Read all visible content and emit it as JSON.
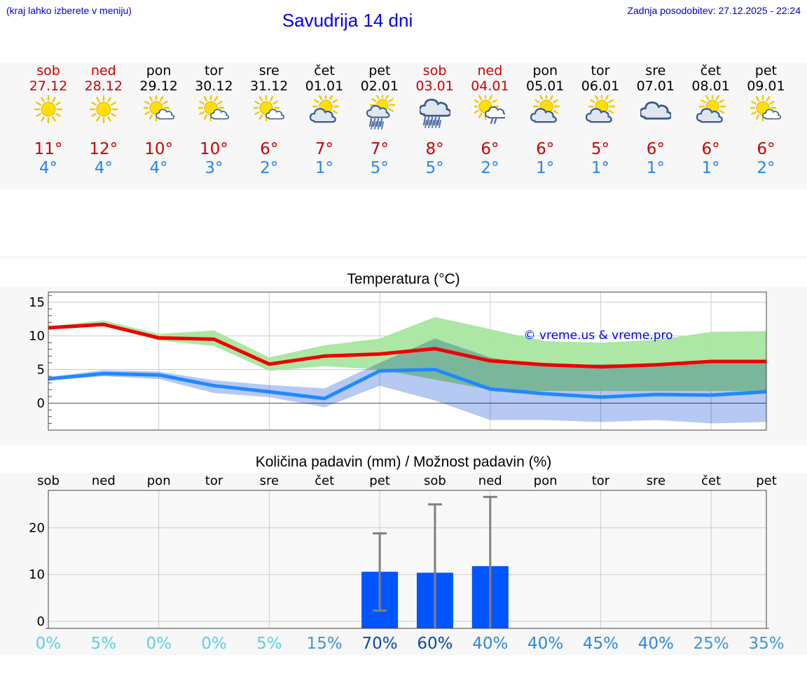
{
  "header": {
    "hint": "(kraj lahko izberete v meniju)",
    "title": "Savudrija 14 dni",
    "updated": "Zadnja posodobitev: 27.12.2025 - 22:24"
  },
  "days": [
    {
      "name": "sob",
      "date": "27.12",
      "weekend": true,
      "icon": "sun-icon",
      "tmax": "11°",
      "tmin": "4°"
    },
    {
      "name": "ned",
      "date": "28.12",
      "weekend": true,
      "icon": "sun-icon",
      "tmax": "12°",
      "tmin": "4°"
    },
    {
      "name": "pon",
      "date": "29.12",
      "weekend": false,
      "icon": "sun-small-cloud-icon",
      "tmax": "10°",
      "tmin": "4°"
    },
    {
      "name": "tor",
      "date": "30.12",
      "weekend": false,
      "icon": "sun-small-cloud-icon",
      "tmax": "10°",
      "tmin": "3°"
    },
    {
      "name": "sre",
      "date": "31.12",
      "weekend": false,
      "icon": "sun-small-cloud-icon",
      "tmax": "6°",
      "tmin": "2°"
    },
    {
      "name": "čet",
      "date": "01.01",
      "weekend": false,
      "icon": "sun-cloud-icon",
      "tmax": "7°",
      "tmin": "1°"
    },
    {
      "name": "pet",
      "date": "02.01",
      "weekend": false,
      "icon": "sun-cloud-rain-icon",
      "tmax": "7°",
      "tmin": "5°"
    },
    {
      "name": "sob",
      "date": "03.01",
      "weekend": true,
      "icon": "cloud-rain-icon",
      "tmax": "8°",
      "tmin": "5°"
    },
    {
      "name": "ned",
      "date": "04.01",
      "weekend": true,
      "icon": "sun-cloud-light-rain-icon",
      "tmax": "6°",
      "tmin": "2°"
    },
    {
      "name": "pon",
      "date": "05.01",
      "weekend": false,
      "icon": "sun-cloud-icon",
      "tmax": "6°",
      "tmin": "1°"
    },
    {
      "name": "tor",
      "date": "06.01",
      "weekend": false,
      "icon": "sun-cloud-icon",
      "tmax": "5°",
      "tmin": "1°"
    },
    {
      "name": "sre",
      "date": "07.01",
      "weekend": false,
      "icon": "cloud-icon",
      "tmax": "6°",
      "tmin": "1°"
    },
    {
      "name": "čet",
      "date": "08.01",
      "weekend": false,
      "icon": "sun-cloud-icon",
      "tmax": "6°",
      "tmin": "1°"
    },
    {
      "name": "pet",
      "date": "09.01",
      "weekend": false,
      "icon": "sun-small-cloud-icon",
      "tmax": "6°",
      "tmin": "2°"
    }
  ],
  "colors": {
    "max_line": "#ee0000",
    "min_line": "#2288ff",
    "max_band": "#a8e6a0",
    "min_band": "#a8c0f0",
    "overlap_band": "#7cc4a8",
    "bar": "#0055ff",
    "error_bar": "#808080",
    "watermark": "#0000ee"
  },
  "chart_data": [
    {
      "type": "line",
      "title": "Temperatura (°C)",
      "xlabel": "",
      "ylabel": "",
      "ylim": [
        -4,
        16.5
      ],
      "yticks": [
        0,
        5,
        10,
        15
      ],
      "watermark": "© vreme.us & vreme.pro",
      "x": [
        1,
        2,
        3,
        4,
        5,
        6,
        7,
        8,
        9,
        10,
        11,
        12,
        13,
        14
      ],
      "series": [
        {
          "name": "max",
          "values": [
            11.2,
            11.7,
            9.7,
            9.5,
            5.8,
            7.0,
            7.3,
            8.1,
            6.3,
            5.7,
            5.4,
            5.7,
            6.2,
            6.2
          ],
          "band_low": [
            11.0,
            11.5,
            9.3,
            8.5,
            4.8,
            5.5,
            5.0,
            3.5,
            2.0,
            1.8,
            1.8,
            1.8,
            1.8,
            1.8
          ],
          "band_high": [
            11.4,
            12.3,
            10.3,
            10.8,
            6.8,
            8.6,
            9.6,
            12.8,
            11.0,
            9.2,
            9.0,
            9.4,
            10.6,
            10.7
          ]
        },
        {
          "name": "min",
          "values": [
            3.6,
            4.4,
            4.2,
            2.6,
            1.7,
            0.7,
            4.8,
            5.0,
            2.1,
            1.4,
            0.9,
            1.3,
            1.2,
            1.7
          ],
          "band_low": [
            3.4,
            4.0,
            3.6,
            1.5,
            0.9,
            -0.6,
            2.6,
            0.4,
            -2.5,
            -2.5,
            -2.8,
            -2.5,
            -3.0,
            -2.8
          ],
          "band_high": [
            3.9,
            4.9,
            4.7,
            3.4,
            2.7,
            2.2,
            6.0,
            9.6,
            6.8,
            5.5,
            5.8,
            5.8,
            6.0,
            6.0
          ]
        }
      ]
    },
    {
      "type": "bar",
      "title": "Količina padavin (mm) / Možnost padavin (%)",
      "ylim": [
        -1.5,
        28
      ],
      "yticks": [
        0,
        10,
        20
      ],
      "categories": [
        "sob",
        "ned",
        "pon",
        "tor",
        "sre",
        "čet",
        "pet",
        "sob",
        "ned",
        "pon",
        "tor",
        "sre",
        "čet",
        "pet"
      ],
      "values": [
        0,
        0,
        0,
        0,
        0,
        0,
        10.6,
        10.4,
        11.8,
        0,
        0,
        0,
        0,
        0
      ],
      "error_low": [
        0,
        0,
        0,
        0,
        0,
        0,
        2.3,
        0,
        0,
        0,
        0,
        0,
        0,
        0
      ],
      "error_high": [
        0,
        0,
        0,
        0,
        0,
        0,
        18.8,
        25.0,
        26.6,
        0,
        0,
        0,
        0,
        0
      ],
      "probabilities": [
        "0%",
        "5%",
        "0%",
        "0%",
        "5%",
        "15%",
        "70%",
        "60%",
        "40%",
        "40%",
        "45%",
        "40%",
        "25%",
        "35%"
      ],
      "probability_values": [
        0,
        5,
        0,
        0,
        5,
        15,
        70,
        60,
        40,
        40,
        45,
        40,
        25,
        35
      ]
    }
  ]
}
